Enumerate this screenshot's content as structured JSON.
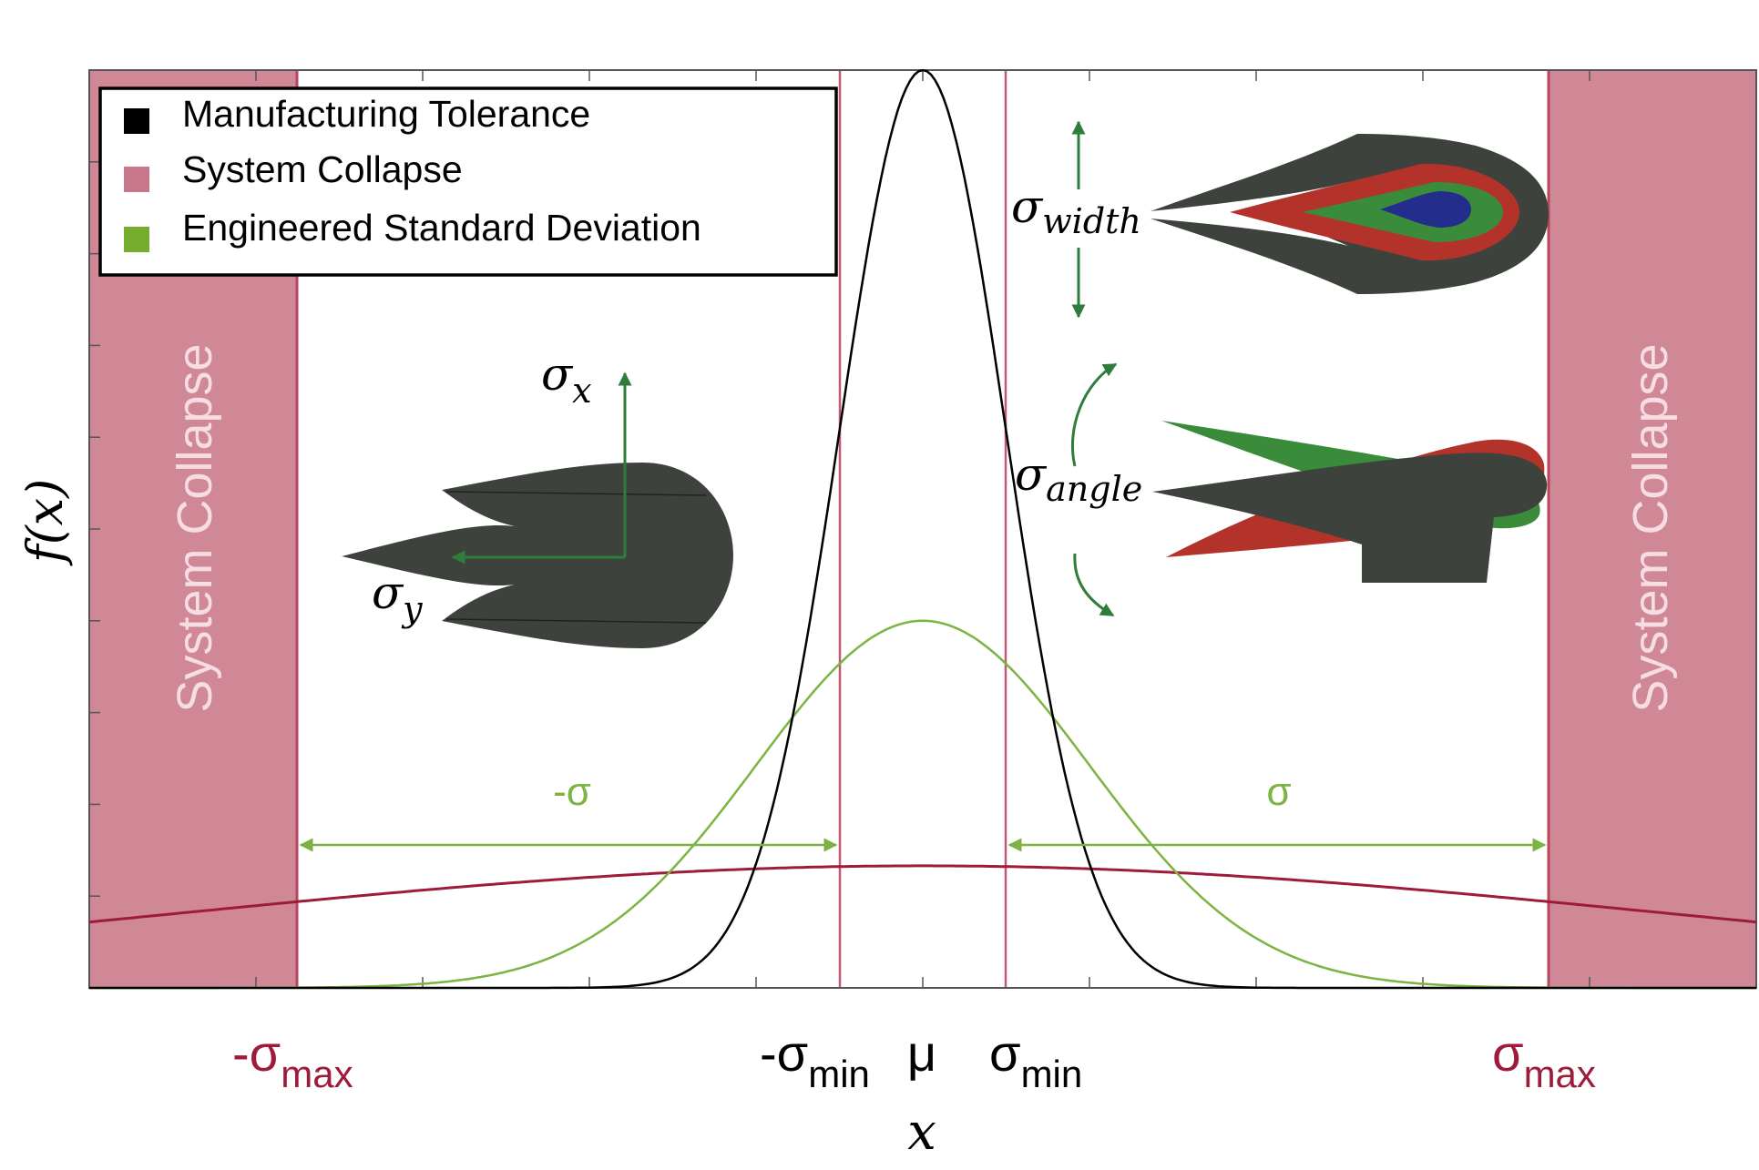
{
  "chart_data": {
    "type": "line",
    "xlabel": "x",
    "ylabel": "f(x)",
    "xlim": [
      -1,
      1
    ],
    "ylim": [
      0,
      1
    ],
    "grid": false,
    "legend_position": "top-left",
    "legend": [
      {
        "label": "Manufacturing Tolerance",
        "color": "#000000"
      },
      {
        "label": "System Collapse",
        "color": "#c9778a"
      },
      {
        "label": "Engineered Standard Deviation",
        "color": "#76ad2f"
      }
    ],
    "series": [
      {
        "key": "manufacturing",
        "color": "#000000",
        "mean": 0,
        "sd": 0.1,
        "peak": 1.0
      },
      {
        "key": "engineered",
        "color": "#7cb342",
        "mean": 0,
        "sd": 0.2,
        "peak": 0.4
      },
      {
        "key": "collapse",
        "color": "#9e1b3a",
        "mean": 0,
        "sd": 0.9,
        "peak": 0.133
      }
    ],
    "regions": [
      {
        "name": "System Collapse",
        "from": -1,
        "to": -0.75
      },
      {
        "name": "System Collapse",
        "from": 0.75,
        "to": 1
      }
    ],
    "marker_lines": [
      -0.1,
      0.1
    ],
    "x_markers": {
      "neg_sigma_max": {
        "main": "-σ",
        "sub": "max",
        "value": -0.75,
        "color": "#9e1b3a"
      },
      "neg_sigma_min": {
        "main": "-σ",
        "sub": "min",
        "value": -0.1,
        "color": "#000000"
      },
      "mu": {
        "main": "μ",
        "value": 0,
        "color": "#000000"
      },
      "sigma_min": {
        "main": "σ",
        "sub": "min",
        "value": 0.1,
        "color": "#000000"
      },
      "sigma_max": {
        "main": "σ",
        "sub": "max",
        "value": 0.75,
        "color": "#9e1b3a"
      }
    },
    "arrow_labels": {
      "left": "-σ",
      "right": "σ"
    },
    "collapse_label": "System Collapse"
  },
  "annotations": {
    "sigma_x": {
      "main": "σ",
      "sub": "x"
    },
    "sigma_y": {
      "main": "σ",
      "sub": "y"
    },
    "sigma_width": {
      "main": "σ",
      "sub": "width"
    },
    "sigma_angle": {
      "main": "σ",
      "sub": "angle"
    }
  },
  "colors": {
    "collapse_fill": "#d08896",
    "collapse_line": "#b5485e",
    "green_arrow": "#7cb342",
    "dark_green": "#2f7d3a",
    "part_dark": "#3e423c",
    "part_red": "#b3332b",
    "part_green": "#3a8c3a",
    "part_blue": "#232d8c"
  }
}
